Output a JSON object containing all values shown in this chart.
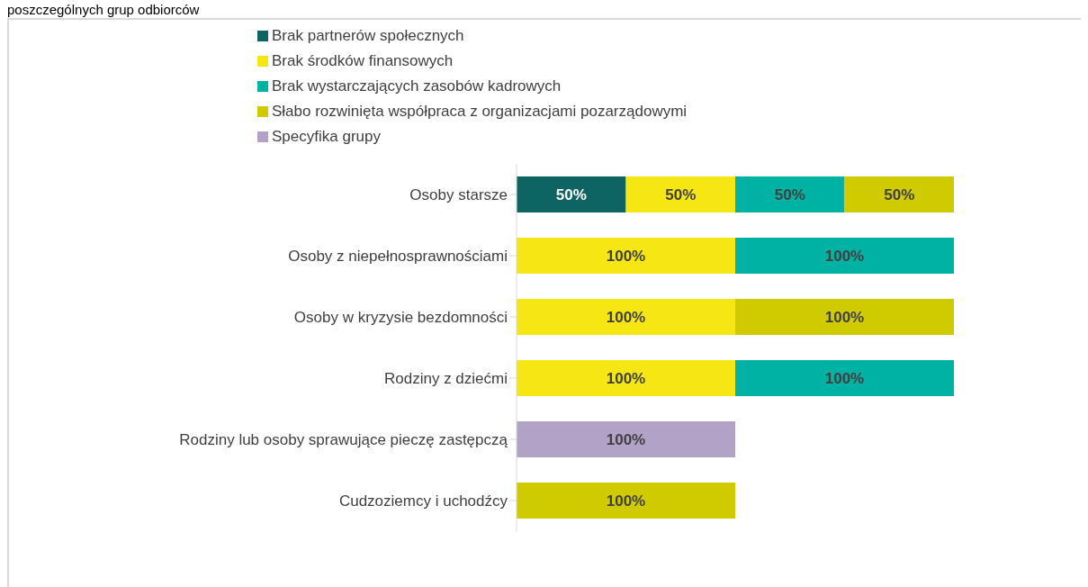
{
  "chart_data": {
    "type": "bar",
    "orientation": "horizontal",
    "stacked": true,
    "title": "poszczególnych grup odbiorców",
    "legend": "top",
    "categories": [
      "Osoby starsze",
      "Osoby z niepełnosprawnościami",
      "Osoby w kryzysie bezdomności",
      "Rodziny z dziećmi",
      "Rodziny lub osoby sprawujące pieczę zastępczą",
      "Cudzoziemcy i uchodźcy"
    ],
    "series": [
      {
        "name": "Brak partnerów społecznych",
        "color": "#0e6463",
        "values": [
          50,
          null,
          null,
          null,
          null,
          null
        ],
        "value_labels": [
          "50%",
          null,
          null,
          null,
          null,
          null
        ]
      },
      {
        "name": "Brak środków finansowych",
        "color": "#f5e614",
        "values": [
          50,
          100,
          100,
          100,
          null,
          null
        ],
        "value_labels": [
          "50%",
          "100%",
          "100%",
          "100%",
          null,
          null
        ]
      },
      {
        "name": "Brak wystarczających zasobów kadrowych",
        "color": "#00b2a4",
        "values": [
          50,
          100,
          null,
          100,
          null,
          null
        ],
        "value_labels": [
          "50%",
          "100%",
          null,
          "100%",
          null,
          null
        ]
      },
      {
        "name": "Słabo rozwinięta współpraca z organizacjami pozarządowymi",
        "color": "#cfcb00",
        "values": [
          50,
          null,
          100,
          null,
          null,
          100
        ],
        "value_labels": [
          "50%",
          null,
          "100%",
          null,
          null,
          "100%"
        ]
      },
      {
        "name": "Specyfika grupy",
        "color": "#b3a2c8",
        "values": [
          null,
          null,
          null,
          null,
          100,
          null
        ],
        "value_labels": [
          null,
          null,
          null,
          null,
          "100%",
          null
        ]
      }
    ]
  }
}
